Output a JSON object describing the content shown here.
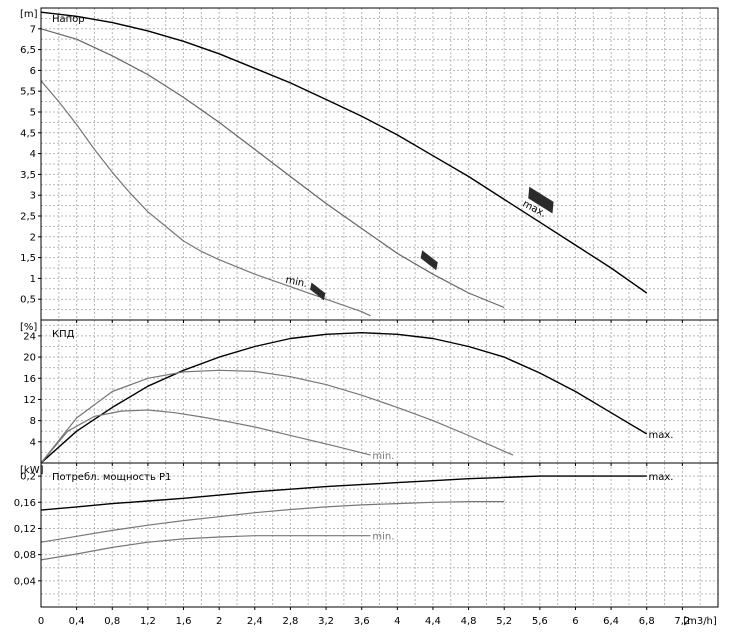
{
  "chart_data": [
    {
      "type": "line",
      "title": "Напор",
      "ylabel": "[m]",
      "xlim": [
        0,
        7.6
      ],
      "ylim": [
        0,
        7.5
      ],
      "yticks": [
        "0,5",
        "1",
        "1,5",
        "2",
        "2,5",
        "3",
        "3,5",
        "4",
        "4,5",
        "5",
        "5,5",
        "6",
        "6,5",
        "7"
      ],
      "grid": true,
      "series": [
        {
          "name": "max.",
          "color": "#000000",
          "x": [
            0,
            0.4,
            0.8,
            1.2,
            1.6,
            2.0,
            2.4,
            2.8,
            3.2,
            3.6,
            4.0,
            4.4,
            4.8,
            5.2,
            5.6,
            6.0,
            6.4,
            6.8
          ],
          "y": [
            7.4,
            7.3,
            7.15,
            6.95,
            6.7,
            6.4,
            6.05,
            5.7,
            5.3,
            4.9,
            4.45,
            3.95,
            3.45,
            2.9,
            2.35,
            1.8,
            1.25,
            0.65
          ]
        },
        {
          "name": "",
          "color": "#666666",
          "x": [
            0,
            0.4,
            0.8,
            1.2,
            1.6,
            2.0,
            2.4,
            2.8,
            3.2,
            3.6,
            4.0,
            4.4,
            4.8,
            5.2
          ],
          "y": [
            7.0,
            6.75,
            6.35,
            5.9,
            5.35,
            4.75,
            4.1,
            3.45,
            2.8,
            2.2,
            1.6,
            1.1,
            0.65,
            0.3
          ]
        },
        {
          "name": "min.",
          "color": "#777777",
          "x": [
            0,
            0.2,
            0.4,
            0.6,
            0.8,
            1.0,
            1.2,
            1.4,
            1.6,
            1.8,
            2.0,
            2.4,
            2.8,
            3.2,
            3.6,
            3.7
          ],
          "y": [
            5.75,
            5.25,
            4.7,
            4.1,
            3.55,
            3.05,
            2.6,
            2.25,
            1.9,
            1.65,
            1.45,
            1.1,
            0.8,
            0.5,
            0.2,
            0.1
          ]
        }
      ],
      "annotations": [
        "min.",
        "max."
      ]
    },
    {
      "type": "line",
      "title": "КПД",
      "ylabel": "[%]",
      "xlim": [
        0,
        7.6
      ],
      "ylim": [
        0,
        27
      ],
      "yticks": [
        "4",
        "8",
        "12",
        "16",
        "20",
        "24"
      ],
      "grid": true,
      "series": [
        {
          "name": "max.",
          "color": "#000000",
          "x": [
            0,
            0.4,
            0.8,
            1.2,
            1.6,
            2.0,
            2.4,
            2.8,
            3.2,
            3.6,
            4.0,
            4.4,
            4.8,
            5.2,
            5.6,
            6.0,
            6.4,
            6.8
          ],
          "y": [
            0,
            6,
            10.5,
            14.5,
            17.5,
            20,
            22,
            23.5,
            24.3,
            24.6,
            24.3,
            23.5,
            22,
            20,
            17,
            13.5,
            9.5,
            5.5
          ]
        },
        {
          "name": "",
          "color": "#777777",
          "x": [
            0,
            0.4,
            0.8,
            1.2,
            1.6,
            2.0,
            2.4,
            2.8,
            3.2,
            3.6,
            4.0,
            4.4,
            4.8,
            5.2,
            5.3
          ],
          "y": [
            0,
            8.5,
            13.5,
            16,
            17.2,
            17.5,
            17.3,
            16.3,
            14.8,
            12.8,
            10.5,
            8,
            5.2,
            2.2,
            1.5
          ]
        },
        {
          "name": "min.",
          "color": "#777777",
          "x": [
            0,
            0.3,
            0.6,
            0.9,
            1.2,
            1.5,
            1.8,
            2.1,
            2.4,
            2.7,
            3.0,
            3.3,
            3.7
          ],
          "y": [
            0,
            6,
            8.8,
            9.8,
            10,
            9.5,
            8.7,
            7.8,
            6.8,
            5.6,
            4.4,
            3.2,
            1.5
          ]
        }
      ],
      "annotations": [
        "max.",
        "min."
      ]
    },
    {
      "type": "line",
      "title": "Потребл. мощность P1",
      "ylabel": "[kW]",
      "xlabel": "[m3/h]",
      "xlim": [
        0,
        7.6
      ],
      "ylim": [
        0,
        0.22
      ],
      "xticks": [
        "0",
        "0,4",
        "0,8",
        "1,2",
        "1,6",
        "2",
        "2,4",
        "2,8",
        "3,2",
        "3,6",
        "4",
        "4,4",
        "4,8",
        "5,2",
        "5,6",
        "6",
        "6,4",
        "6,8",
        "7,2"
      ],
      "yticks": [
        "0,04",
        "0,08",
        "0,12",
        "0,16",
        "0,2"
      ],
      "grid": true,
      "series": [
        {
          "name": "max.",
          "color": "#000000",
          "x": [
            0,
            0.4,
            0.8,
            1.2,
            1.6,
            2.0,
            2.4,
            2.8,
            3.2,
            3.6,
            4.0,
            4.4,
            4.8,
            5.2,
            5.6,
            6.0,
            6.4,
            6.8
          ],
          "y": [
            0.148,
            0.153,
            0.158,
            0.162,
            0.166,
            0.171,
            0.176,
            0.18,
            0.184,
            0.187,
            0.19,
            0.193,
            0.196,
            0.198,
            0.2,
            0.2,
            0.2,
            0.2
          ]
        },
        {
          "name": "",
          "color": "#777777",
          "x": [
            0,
            0.4,
            0.8,
            1.2,
            1.6,
            2.0,
            2.4,
            2.8,
            3.2,
            3.6,
            4.0,
            4.4,
            4.8,
            5.2
          ],
          "y": [
            0.099,
            0.108,
            0.117,
            0.125,
            0.132,
            0.138,
            0.144,
            0.149,
            0.153,
            0.156,
            0.158,
            0.16,
            0.161,
            0.161
          ]
        },
        {
          "name": "min.",
          "color": "#777777",
          "x": [
            0,
            0.4,
            0.8,
            1.2,
            1.6,
            2.0,
            2.4,
            2.8,
            3.2,
            3.7
          ],
          "y": [
            0.072,
            0.081,
            0.091,
            0.099,
            0.104,
            0.107,
            0.109,
            0.109,
            0.109,
            0.109
          ]
        }
      ],
      "annotations": [
        "max.",
        "min."
      ]
    }
  ]
}
